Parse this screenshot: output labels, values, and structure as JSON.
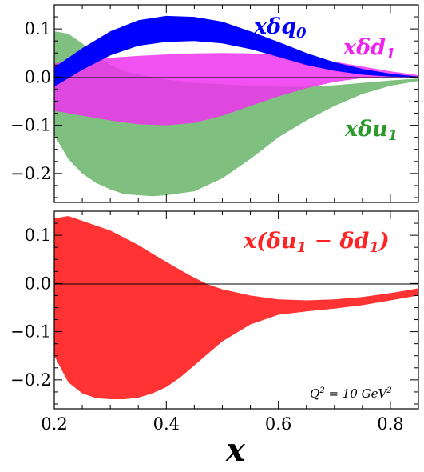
{
  "chart_data": [
    {
      "type": "area",
      "xlim": [
        0.2,
        0.85
      ],
      "ylim": [
        -0.26,
        0.15
      ],
      "yticks": [
        0.1,
        0.0,
        -0.1,
        -0.2
      ],
      "ytick_labels": [
        "0.1",
        "0.0",
        "−0.1",
        "−0.2"
      ],
      "grid": false,
      "series": [
        {
          "name": "xδu1",
          "color": "#7fbf7f",
          "x": [
            0.2,
            0.225,
            0.25,
            0.275,
            0.3,
            0.325,
            0.35,
            0.375,
            0.4,
            0.45,
            0.5,
            0.55,
            0.6,
            0.65,
            0.7,
            0.75,
            0.8,
            0.85
          ],
          "upper": [
            0.095,
            0.09,
            0.07,
            0.045,
            0.025,
            0.012,
            0.005,
            0.0,
            -0.005,
            -0.012,
            -0.015,
            -0.018,
            -0.02,
            -0.02,
            -0.017,
            -0.012,
            -0.007,
            -0.003
          ],
          "lower": [
            -0.12,
            -0.17,
            -0.2,
            -0.22,
            -0.233,
            -0.243,
            -0.245,
            -0.247,
            -0.245,
            -0.237,
            -0.21,
            -0.17,
            -0.125,
            -0.09,
            -0.06,
            -0.035,
            -0.018,
            -0.008
          ]
        },
        {
          "name": "xδd1",
          "color": "#ee33ee",
          "x": [
            0.2,
            0.25,
            0.3,
            0.35,
            0.4,
            0.45,
            0.5,
            0.55,
            0.6,
            0.65,
            0.7,
            0.75,
            0.8,
            0.85
          ],
          "upper": [
            0.028,
            0.035,
            0.04,
            0.044,
            0.047,
            0.049,
            0.05,
            0.049,
            0.046,
            0.04,
            0.032,
            0.022,
            0.012,
            0.004
          ],
          "lower": [
            -0.07,
            -0.08,
            -0.09,
            -0.098,
            -0.1,
            -0.095,
            -0.08,
            -0.06,
            -0.04,
            -0.023,
            -0.01,
            -0.002,
            0.0,
            0.0
          ]
        },
        {
          "name": "xδq0",
          "color": "#0000ff",
          "x": [
            0.2,
            0.25,
            0.3,
            0.35,
            0.4,
            0.45,
            0.5,
            0.55,
            0.6,
            0.65,
            0.7,
            0.75,
            0.8,
            0.85
          ],
          "upper": [
            0.02,
            0.06,
            0.095,
            0.118,
            0.127,
            0.125,
            0.115,
            0.095,
            0.073,
            0.05,
            0.031,
            0.017,
            0.007,
            0.001
          ],
          "lower": [
            -0.02,
            0.015,
            0.045,
            0.065,
            0.073,
            0.075,
            0.07,
            0.058,
            0.042,
            0.025,
            0.013,
            0.005,
            0.001,
            0.0
          ]
        }
      ],
      "annotations": [
        "xδq0",
        "xδd1",
        "xδu1"
      ]
    },
    {
      "type": "area",
      "xlim": [
        0.2,
        0.85
      ],
      "ylim": [
        -0.26,
        0.15
      ],
      "xticks": [
        0.2,
        0.4,
        0.6,
        0.8
      ],
      "xtick_labels": [
        "0.2",
        "0.4",
        "0.6",
        "0.8"
      ],
      "yticks": [
        0.1,
        0.0,
        -0.1,
        -0.2
      ],
      "ytick_labels": [
        "0.1",
        "0.0",
        "−0.1",
        "−0.2"
      ],
      "xlabel": "x",
      "grid": false,
      "series": [
        {
          "name": "x(δu1 − δd1)",
          "color": "#ff3333",
          "x": [
            0.2,
            0.225,
            0.25,
            0.275,
            0.3,
            0.325,
            0.35,
            0.375,
            0.4,
            0.425,
            0.45,
            0.475,
            0.5,
            0.55,
            0.6,
            0.65,
            0.7,
            0.75,
            0.8,
            0.85
          ],
          "upper": [
            0.135,
            0.14,
            0.13,
            0.12,
            0.11,
            0.095,
            0.08,
            0.062,
            0.045,
            0.028,
            0.012,
            -0.002,
            -0.012,
            -0.025,
            -0.033,
            -0.035,
            -0.033,
            -0.028,
            -0.02,
            -0.01
          ],
          "lower": [
            -0.15,
            -0.205,
            -0.228,
            -0.238,
            -0.24,
            -0.24,
            -0.237,
            -0.228,
            -0.215,
            -0.195,
            -0.17,
            -0.145,
            -0.12,
            -0.085,
            -0.065,
            -0.058,
            -0.052,
            -0.045,
            -0.035,
            -0.025
          ]
        }
      ],
      "annotations": [
        "x(δu1 − δd1)",
        "Q² = 10 GeV²"
      ]
    }
  ]
}
